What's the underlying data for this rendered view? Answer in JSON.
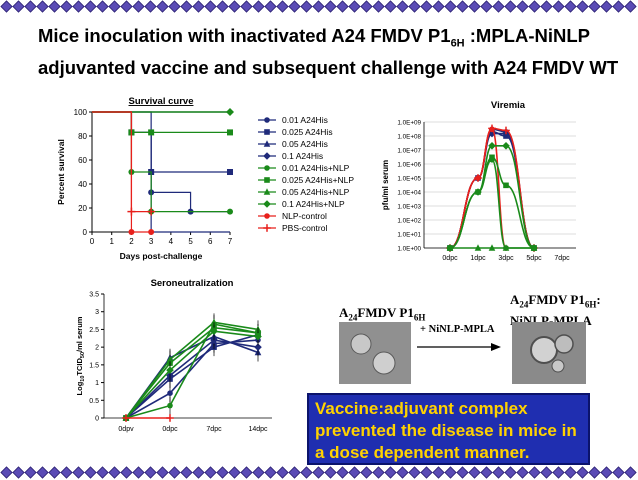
{
  "slide": {
    "title_line1_pre": "Mice inoculation with inactivated  A24 FMDV P1",
    "title_line1_sub": "6H",
    "title_line1_post": " :MPLA-NiNLP",
    "title_line2": "adjuvanted vaccine and subsequent  challenge with A24 FMDV WT"
  },
  "em": {
    "left_label_pre": "A",
    "left_label_sub1": "24",
    "left_label_mid": "FMDV P1",
    "left_label_sub2": "6H",
    "arrow_label": "+ NiNLP-MPLA",
    "right_label_l1_pre": "A",
    "right_label_l1_sub1": "24",
    "right_label_l1_mid": "FMDV P1",
    "right_label_l1_sub2": "6H",
    "right_label_l1_post": ":",
    "right_label_l2": "NiNLP-MPLA"
  },
  "callout": {
    "text": "Vaccine:adjuvant complex prevented the disease in mice in a  dose dependent manner."
  },
  "colors": {
    "navy": "#1f2a7a",
    "green": "#1a8a1a",
    "red": "#e8201c",
    "callout_bg": "#1f2eb0",
    "callout_text": "#ffd200"
  },
  "chart_data": [
    {
      "type": "line",
      "title": "Survival curve",
      "xlabel": "Days post-challenge",
      "ylabel": "Percent survival",
      "xlim": [
        0,
        7
      ],
      "ylim": [
        0,
        100
      ],
      "xticks": [
        "0",
        "1",
        "2",
        "3",
        "4",
        "5",
        "6",
        "7"
      ],
      "yticks": [
        "0",
        "20",
        "40",
        "60",
        "80",
        "100"
      ],
      "legend_position": "right",
      "series": [
        {
          "name": "0.01 A24His",
          "color": "#1f2a7a",
          "marker": "circle",
          "x": [
            0,
            2,
            2,
            3,
            3,
            5,
            5,
            7
          ],
          "y": [
            100,
            100,
            83,
            83,
            33,
            33,
            17,
            17
          ],
          "markers_x": [
            3,
            5
          ],
          "markers_y": [
            33,
            17
          ]
        },
        {
          "name": "0.025 A24His",
          "color": "#1f2a7a",
          "marker": "square",
          "x": [
            0,
            2,
            2,
            3,
            3,
            7
          ],
          "y": [
            100,
            100,
            83,
            83,
            50,
            50
          ],
          "markers_x": [
            2,
            3,
            7
          ],
          "markers_y": [
            83,
            50,
            50
          ]
        },
        {
          "name": "0.05 A24His",
          "color": "#1f2a7a",
          "marker": "triangle",
          "x": [
            0,
            3,
            3,
            7
          ],
          "y": [
            100,
            100,
            0,
            0
          ],
          "markers_x": [],
          "markers_y": []
        },
        {
          "name": "0.1 A24His",
          "color": "#1f2a7a",
          "marker": "diamond",
          "x": [
            0,
            3,
            3,
            7
          ],
          "y": [
            100,
            100,
            100,
            100
          ],
          "markers_x": [],
          "markers_y": []
        },
        {
          "name": "0.01 A24His+NLP",
          "color": "#1a8a1a",
          "marker": "circle",
          "x": [
            0,
            2,
            2,
            3,
            3,
            7
          ],
          "y": [
            100,
            100,
            50,
            50,
            17,
            17
          ],
          "markers_x": [
            2,
            3,
            7
          ],
          "markers_y": [
            50,
            17,
            17
          ]
        },
        {
          "name": "0.025 A24His+NLP",
          "color": "#1a8a1a",
          "marker": "square",
          "x": [
            0,
            2,
            2,
            7
          ],
          "y": [
            100,
            100,
            83,
            83
          ],
          "markers_x": [
            2,
            3,
            7
          ],
          "markers_y": [
            83,
            83,
            83
          ]
        },
        {
          "name": "0.05 A24His+NLP",
          "color": "#1a8a1a",
          "marker": "triangle",
          "x": [
            0,
            3,
            3,
            7
          ],
          "y": [
            100,
            100,
            100,
            100
          ],
          "markers_x": [],
          "markers_y": []
        },
        {
          "name": "0.1 A24His+NLP",
          "color": "#1a8a1a",
          "marker": "diamond",
          "x": [
            0,
            7
          ],
          "y": [
            100,
            100
          ],
          "markers_x": [
            7
          ],
          "markers_y": [
            100
          ]
        },
        {
          "name": "NLP-control",
          "color": "#e8201c",
          "marker": "circle",
          "x": [
            0,
            2,
            2,
            3
          ],
          "y": [
            100,
            100,
            0,
            0
          ],
          "markers_x": [
            2,
            3
          ],
          "markers_y": [
            0,
            0
          ]
        },
        {
          "name": "PBS-control",
          "color": "#e8201c",
          "marker": "plus",
          "x": [
            0,
            2,
            2,
            3
          ],
          "y": [
            100,
            100,
            17,
            17
          ],
          "markers_x": [
            2,
            3
          ],
          "markers_y": [
            17,
            17
          ]
        }
      ]
    },
    {
      "type": "line",
      "title": "Viremia",
      "ylabel": "pfu/ml serum",
      "categories": [
        "0dpc",
        "1dpc",
        "3dpc",
        "5dpc",
        "7dpc"
      ],
      "x": [
        0,
        1,
        2,
        3,
        4,
        5,
        6,
        7,
        8
      ],
      "yscale": "log",
      "ylim": [
        1,
        1000000000
      ],
      "yticks": [
        "1.0E+00",
        "1.0E+01",
        "1.0E+02",
        "1.0E+03",
        "1.0E+04",
        "1.0E+05",
        "1.0E+06",
        "1.0E+07",
        "1.0E+08",
        "1.0E+09"
      ],
      "series": [
        {
          "color": "#1f2a7a",
          "marker": "circle",
          "x": [
            0,
            1,
            2,
            3,
            4
          ],
          "y": [
            1,
            100000,
            300000000,
            200000000,
            1
          ]
        },
        {
          "color": "#1f2a7a",
          "marker": "square",
          "x": [
            0,
            1,
            2,
            3,
            4
          ],
          "y": [
            1,
            100000,
            200000000,
            100000000,
            1
          ]
        },
        {
          "color": "#1f2a7a",
          "marker": "diamond",
          "x": [
            0,
            1,
            2,
            3,
            4
          ],
          "y": [
            1,
            100000,
            150000000,
            150000000,
            1
          ]
        },
        {
          "color": "#e8201c",
          "marker": "plus",
          "x": [
            0,
            1,
            2,
            3,
            4
          ],
          "y": [
            1,
            100000,
            350000000,
            250000000,
            1
          ]
        },
        {
          "color": "#e8201c",
          "marker": "circle",
          "x": [
            0,
            1,
            2,
            3
          ],
          "y": [
            1,
            100000,
            300000000,
            1
          ]
        },
        {
          "color": "#1a8a1a",
          "marker": "diamond",
          "x": [
            0,
            1,
            2,
            3,
            4
          ],
          "y": [
            1,
            10000,
            20000000,
            20000000,
            1
          ]
        },
        {
          "color": "#1a8a1a",
          "marker": "square",
          "x": [
            0,
            1,
            2,
            3,
            4
          ],
          "y": [
            1,
            10000,
            3000000,
            30000,
            1
          ]
        },
        {
          "color": "#1a8a1a",
          "marker": "circle",
          "x": [
            0,
            1,
            2,
            3,
            4
          ],
          "y": [
            1,
            10000,
            2000000,
            1,
            1
          ]
        },
        {
          "color": "#1a8a1a",
          "marker": "triangle",
          "x": [
            0,
            1,
            2,
            3,
            4
          ],
          "y": [
            1,
            1,
            1,
            1,
            1
          ]
        }
      ],
      "xmap": [
        0,
        1.0,
        1.5,
        2.0,
        3.0
      ]
    },
    {
      "type": "line",
      "title": "Seroneutralization",
      "ylabel_pre": "Log",
      "ylabel_sub": "10",
      "ylabel_post": "TCID",
      "ylabel_sub2": "50",
      "ylabel_end": "/ml serum",
      "categories": [
        "0dpv",
        "0dpc",
        "7dpc",
        "14dpc"
      ],
      "ylim": [
        0,
        3.5
      ],
      "yticks": [
        "0",
        "0.5",
        "1",
        "1.5",
        "2",
        "2.5",
        "3",
        "3.5"
      ],
      "series": [
        {
          "color": "#1f2a7a",
          "marker": "circle",
          "values": [
            0,
            0.7,
            2.1,
            2.2
          ]
        },
        {
          "color": "#1f2a7a",
          "marker": "square",
          "values": [
            0,
            1.1,
            2.0,
            2.35
          ]
        },
        {
          "color": "#1f2a7a",
          "marker": "triangle",
          "values": [
            0,
            1.7,
            2.3,
            1.85
          ]
        },
        {
          "color": "#1f2a7a",
          "marker": "diamond",
          "values": [
            0,
            1.2,
            2.2,
            2.0
          ]
        },
        {
          "color": "#1a8a1a",
          "marker": "circle",
          "values": [
            0,
            0.35,
            2.65,
            2.4
          ]
        },
        {
          "color": "#1a8a1a",
          "marker": "square",
          "values": [
            0,
            1.55,
            2.55,
            2.4
          ]
        },
        {
          "color": "#1a8a1a",
          "marker": "triangle",
          "values": [
            0,
            1.65,
            2.7,
            2.5
          ]
        },
        {
          "color": "#1a8a1a",
          "marker": "diamond",
          "values": [
            0,
            1.35,
            2.45,
            2.3
          ]
        },
        {
          "color": "#e8201c",
          "marker": "plus",
          "values": [
            0,
            0,
            null,
            null
          ]
        }
      ]
    }
  ]
}
